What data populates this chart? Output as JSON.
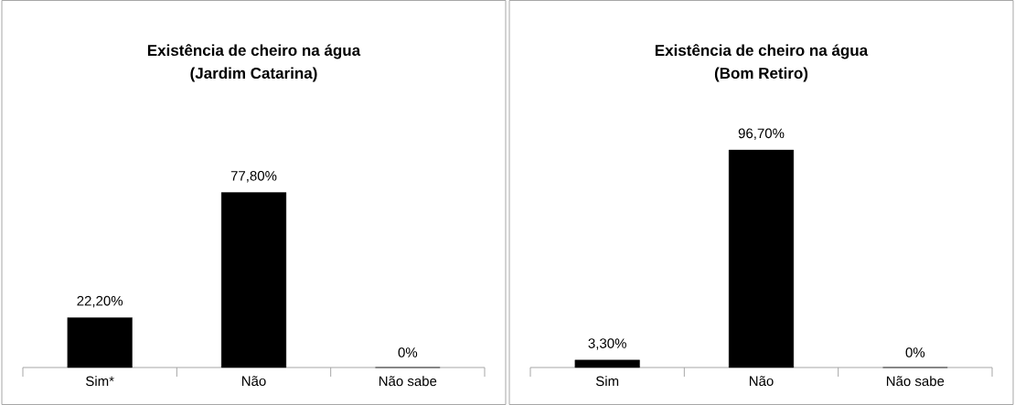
{
  "chart_data": [
    {
      "type": "bar",
      "title": "**Existência de cheiro na água**",
      "subtitle": "**(Jardim Catarina)**",
      "categories": [
        "Sim*",
        "Não",
        "Não sabe"
      ],
      "values": [
        22.2,
        77.8,
        0
      ],
      "value_labels": [
        "22,20%",
        "77,80%",
        "0%"
      ],
      "color": "#000000",
      "grid": false,
      "tick_labels": "x"
    },
    {
      "type": "bar",
      "title": "**Existência de cheiro na água**",
      "subtitle": "**(Bom Retiro)**",
      "categories": [
        "Sim",
        "Não",
        "Não sabe"
      ],
      "values": [
        3.3,
        96.7,
        0
      ],
      "value_labels": [
        "3,30%",
        "96,70%",
        "0%"
      ],
      "color": "#000000",
      "grid": false,
      "tick_labels": "x"
    }
  ]
}
